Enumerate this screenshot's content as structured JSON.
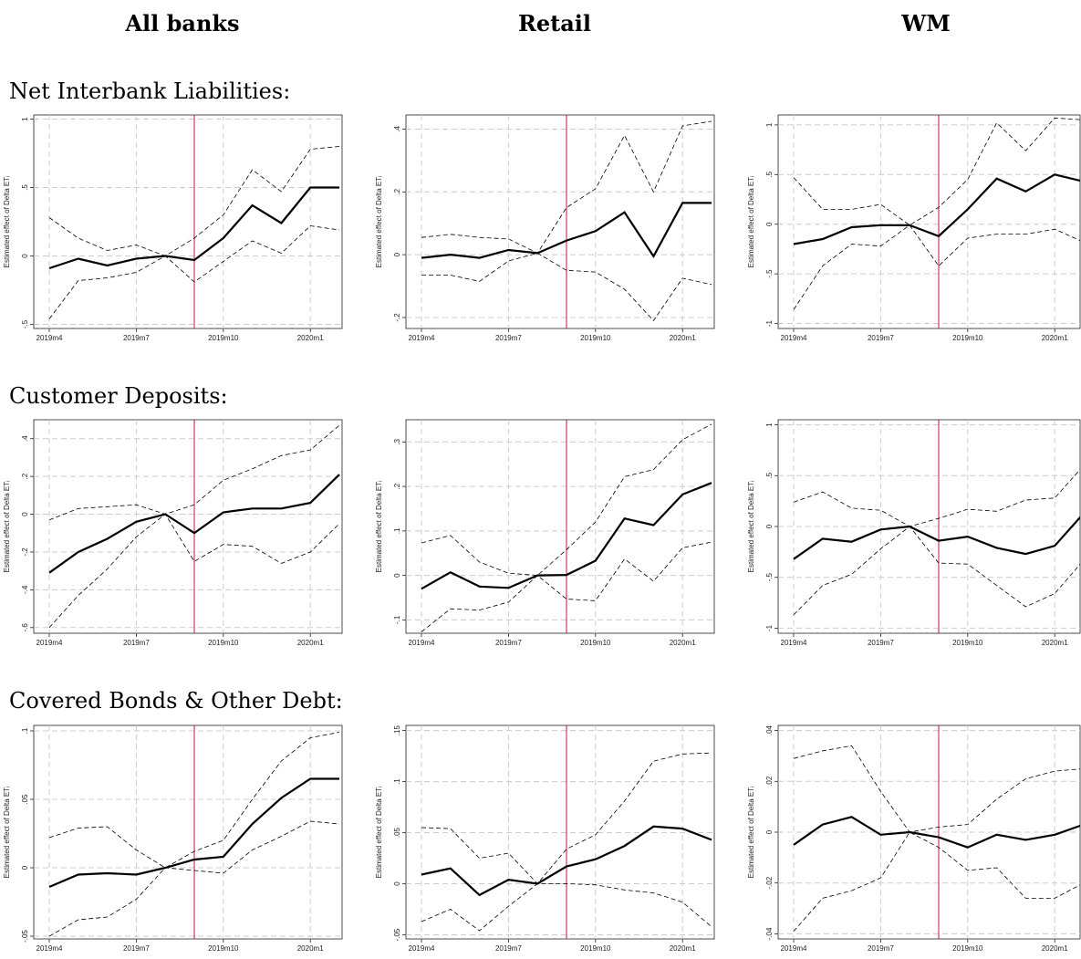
{
  "column_titles": [
    "All banks",
    "Retail",
    "WM"
  ],
  "row_titles": [
    "Net Interbank Liabilities:",
    "Customer Deposits:",
    "Covered Bonds & Other Debt:"
  ],
  "chart_data": [
    {
      "type": "line",
      "y_label": "Estimated effect of Delta ETᵢ",
      "categories": [
        "2019m4",
        null,
        null,
        "2019m7",
        null,
        null,
        "2019m10",
        null,
        null,
        "2020m1",
        null
      ],
      "series": [
        {
          "color": "#000000",
          "style": "solid",
          "values": [
            -0.09,
            -0.02,
            -0.07,
            -0.02,
            0,
            -0.03,
            0.13,
            0.37,
            0.24,
            0.5,
            0.5
          ]
        },
        {
          "color": "#000000",
          "style": "dashed",
          "values": [
            0.28,
            0.13,
            0.04,
            0.08,
            0,
            0.13,
            0.3,
            0.63,
            0.47,
            0.78,
            0.8
          ]
        },
        {
          "color": "#000000",
          "style": "dashed",
          "values": [
            -0.46,
            -0.18,
            -0.16,
            -0.12,
            0,
            -0.19,
            -0.04,
            0.11,
            0.02,
            0.22,
            0.19
          ]
        }
      ],
      "ylim": [
        -0.53,
        1.03
      ],
      "yticks": [
        {
          "value": -0.5,
          "label": "-.5"
        },
        0,
        {
          "value": 0.5,
          "label": ".5"
        },
        1
      ],
      "vline": 5,
      "vline_color": "#c8103a",
      "grid": true
    },
    {
      "type": "line",
      "y_label": "Estimated effect of Delta ETᵢ",
      "categories": [
        "2019m4",
        null,
        null,
        "2019m7",
        null,
        null,
        "2019m10",
        null,
        null,
        "2020m1",
        null
      ],
      "series": [
        {
          "color": "#000000",
          "style": "solid",
          "values": [
            -0.01,
            0,
            -0.01,
            0.015,
            0.005,
            0.045,
            0.075,
            0.135,
            -0.005,
            0.165,
            0.165
          ]
        },
        {
          "color": "#000000",
          "style": "dashed",
          "values": [
            0.055,
            0.065,
            0.055,
            0.05,
            0.005,
            0.15,
            0.21,
            0.38,
            0.2,
            0.41,
            0.425
          ]
        },
        {
          "color": "#000000",
          "style": "dashed",
          "values": [
            -0.065,
            -0.065,
            -0.085,
            -0.02,
            0.005,
            -0.05,
            -0.055,
            -0.11,
            -0.21,
            -0.075,
            -0.095
          ]
        }
      ],
      "ylim": [
        -0.235,
        0.445
      ],
      "yticks": [
        {
          "value": -0.2,
          "label": "-.2"
        },
        0,
        {
          "value": 0.2,
          "label": ".2"
        },
        {
          "value": 0.4,
          "label": ".4"
        }
      ],
      "vline": 5,
      "vline_color": "#c8103a",
      "grid": true
    },
    {
      "type": "line",
      "y_label": "Estimated effect of Delta ETᵢ",
      "categories": [
        "2019m4",
        null,
        null,
        "2019m7",
        null,
        null,
        "2019m10",
        null,
        null,
        "2020m1",
        null
      ],
      "series": [
        {
          "color": "#000000",
          "style": "solid",
          "values": [
            -0.2,
            -0.15,
            -0.03,
            -0.01,
            -0.01,
            -0.12,
            0.15,
            0.46,
            0.33,
            0.5,
            0.43
          ]
        },
        {
          "color": "#000000",
          "style": "dashed",
          "values": [
            0.47,
            0.15,
            0.15,
            0.2,
            -0.01,
            0.17,
            0.45,
            1.02,
            0.74,
            1.07,
            1.05
          ]
        },
        {
          "color": "#000000",
          "style": "dashed",
          "values": [
            -0.86,
            -0.42,
            -0.2,
            -0.22,
            -0.01,
            -0.42,
            -0.14,
            -0.1,
            -0.1,
            -0.05,
            -0.18
          ]
        }
      ],
      "ylim": [
        -1.05,
        1.1
      ],
      "yticks": [
        -1,
        {
          "value": -0.5,
          "label": "-.5"
        },
        0,
        {
          "value": 0.5,
          "label": ".5"
        },
        1
      ],
      "vline": 5,
      "vline_color": "#c8103a",
      "grid": true
    },
    {
      "type": "line",
      "y_label": "Estimated effect of Delta ETᵢ",
      "categories": [
        "2019m4",
        null,
        null,
        "2019m7",
        null,
        null,
        "2019m10",
        null,
        null,
        "2020m1",
        null
      ],
      "series": [
        {
          "color": "#000000",
          "style": "solid",
          "values": [
            -0.31,
            -0.2,
            -0.13,
            -0.04,
            0,
            -0.1,
            0.01,
            0.03,
            0.03,
            0.06,
            0.21
          ]
        },
        {
          "color": "#000000",
          "style": "dashed",
          "values": [
            -0.03,
            0.03,
            0.04,
            0.05,
            0,
            0.05,
            0.18,
            0.24,
            0.31,
            0.34,
            0.47
          ]
        },
        {
          "color": "#000000",
          "style": "dashed",
          "values": [
            -0.6,
            -0.43,
            -0.29,
            -0.12,
            0,
            -0.25,
            -0.16,
            -0.17,
            -0.26,
            -0.2,
            -0.05
          ]
        }
      ],
      "ylim": [
        -0.63,
        0.5
      ],
      "yticks": [
        {
          "value": -0.6,
          "label": "-.6"
        },
        {
          "value": -0.4,
          "label": "-.4"
        },
        {
          "value": -0.2,
          "label": "-.2"
        },
        0,
        {
          "value": 0.2,
          "label": ".2"
        },
        {
          "value": 0.4,
          "label": ".4"
        }
      ],
      "vline": 5,
      "vline_color": "#c8103a",
      "grid": true
    },
    {
      "type": "line",
      "y_label": "Estimated effect of Delta ETᵢ",
      "categories": [
        "2019m4",
        null,
        null,
        "2019m7",
        null,
        null,
        "2019m10",
        null,
        null,
        "2020m1",
        null
      ],
      "series": [
        {
          "color": "#000000",
          "style": "solid",
          "values": [
            -0.03,
            0.007,
            -0.025,
            -0.028,
            0,
            0.001,
            0.033,
            0.128,
            0.113,
            0.182,
            0.208
          ]
        },
        {
          "color": "#000000",
          "style": "dashed",
          "values": [
            0.073,
            0.09,
            0.03,
            0.005,
            0,
            0.058,
            0.12,
            0.222,
            0.238,
            0.305,
            0.34
          ]
        },
        {
          "color": "#000000",
          "style": "dashed",
          "values": [
            -0.127,
            -0.075,
            -0.078,
            -0.06,
            0,
            -0.053,
            -0.057,
            0.037,
            -0.013,
            0.062,
            0.075
          ]
        }
      ],
      "ylim": [
        -0.13,
        0.35
      ],
      "yticks": [
        {
          "value": -0.1,
          "label": "-.1"
        },
        0,
        {
          "value": 0.1,
          "label": ".1"
        },
        {
          "value": 0.2,
          "label": ".2"
        },
        {
          "value": 0.3,
          "label": ".3"
        }
      ],
      "vline": 5,
      "vline_color": "#c8103a",
      "grid": true
    },
    {
      "type": "line",
      "y_label": "Estimated effect of Delta ETᵢ",
      "categories": [
        "2019m4",
        null,
        null,
        "2019m7",
        null,
        null,
        "2019m10",
        null,
        null,
        "2020m1",
        null
      ],
      "series": [
        {
          "color": "#000000",
          "style": "solid",
          "values": [
            -0.32,
            -0.12,
            -0.15,
            -0.03,
            0,
            -0.14,
            -0.1,
            -0.21,
            -0.27,
            -0.19,
            0.13
          ]
        },
        {
          "color": "#000000",
          "style": "dashed",
          "values": [
            0.24,
            0.34,
            0.18,
            0.16,
            0,
            0.08,
            0.17,
            0.15,
            0.26,
            0.28,
            0.6
          ]
        },
        {
          "color": "#000000",
          "style": "dashed",
          "values": [
            -0.87,
            -0.58,
            -0.47,
            -0.22,
            0,
            -0.36,
            -0.37,
            -0.58,
            -0.79,
            -0.66,
            -0.33
          ]
        }
      ],
      "ylim": [
        -1.05,
        1.05
      ],
      "yticks": [
        -1,
        {
          "value": -0.5,
          "label": "-.5"
        },
        0,
        {
          "value": 0.5,
          "label": ".5"
        },
        1
      ],
      "vline": 5,
      "vline_color": "#c8103a",
      "grid": true
    },
    {
      "type": "line",
      "y_label": "Estimated effect of Delta ETᵢ",
      "categories": [
        "2019m4",
        null,
        null,
        "2019m7",
        null,
        null,
        "2019m10",
        null,
        null,
        "2020m1",
        null
      ],
      "series": [
        {
          "color": "#000000",
          "style": "solid",
          "values": [
            -0.014,
            -0.005,
            -0.004,
            -0.005,
            0,
            0.006,
            0.008,
            0.032,
            0.051,
            0.065,
            0.065
          ]
        },
        {
          "color": "#000000",
          "style": "dashed",
          "values": [
            0.022,
            0.029,
            0.03,
            0.013,
            0,
            0.012,
            0.02,
            0.05,
            0.078,
            0.095,
            0.099
          ]
        },
        {
          "color": "#000000",
          "style": "dashed",
          "values": [
            -0.05,
            -0.038,
            -0.036,
            -0.023,
            0,
            -0.002,
            -0.004,
            0.013,
            0.023,
            0.034,
            0.032
          ]
        }
      ],
      "ylim": [
        -0.052,
        0.104
      ],
      "yticks": [
        {
          "value": -0.05,
          "label": "-.05"
        },
        0,
        {
          "value": 0.05,
          "label": ".05"
        },
        {
          "value": 0.1,
          "label": ".1"
        }
      ],
      "vline": 5,
      "vline_color": "#c8103a",
      "grid": true
    },
    {
      "type": "line",
      "y_label": "Estimated effect of Delta ETᵢ",
      "categories": [
        "2019m4",
        null,
        null,
        "2019m7",
        null,
        null,
        "2019m10",
        null,
        null,
        "2020m1",
        null
      ],
      "series": [
        {
          "color": "#000000",
          "style": "solid",
          "values": [
            0.009,
            0.015,
            -0.011,
            0.004,
            0,
            0.017,
            0.024,
            0.037,
            0.056,
            0.054,
            0.043
          ]
        },
        {
          "color": "#000000",
          "style": "dashed",
          "values": [
            0.055,
            0.054,
            0.025,
            0.03,
            0,
            0.034,
            0.048,
            0.081,
            0.12,
            0.127,
            0.128
          ]
        },
        {
          "color": "#000000",
          "style": "dashed",
          "values": [
            -0.037,
            -0.025,
            -0.046,
            -0.022,
            0,
            0,
            -0.001,
            -0.006,
            -0.009,
            -0.018,
            -0.042
          ]
        }
      ],
      "ylim": [
        -0.054,
        0.155
      ],
      "yticks": [
        {
          "value": -0.05,
          "label": "-.05"
        },
        0,
        {
          "value": 0.05,
          "label": ".05"
        },
        {
          "value": 0.1,
          "label": ".1"
        },
        {
          "value": 0.15,
          "label": ".15"
        }
      ],
      "vline": 5,
      "vline_color": "#c8103a",
      "grid": true
    },
    {
      "type": "line",
      "y_label": "Estimated effect of Delta ETᵢ",
      "categories": [
        "2019m4",
        null,
        null,
        "2019m7",
        null,
        null,
        "2019m10",
        null,
        null,
        "2020m1",
        null
      ],
      "series": [
        {
          "color": "#000000",
          "style": "solid",
          "values": [
            -0.005,
            0.003,
            0.006,
            -0.001,
            0,
            -0.002,
            -0.006,
            -0.001,
            -0.003,
            -0.001,
            0.003
          ]
        },
        {
          "color": "#000000",
          "style": "dashed",
          "values": [
            0.029,
            0.032,
            0.034,
            0.016,
            0,
            0.002,
            0.003,
            0.013,
            0.021,
            0.024,
            0.025
          ]
        },
        {
          "color": "#000000",
          "style": "dashed",
          "values": [
            -0.039,
            -0.026,
            -0.023,
            -0.018,
            0,
            -0.006,
            -0.015,
            -0.014,
            -0.026,
            -0.026,
            -0.02
          ]
        }
      ],
      "ylim": [
        -0.042,
        0.042
      ],
      "yticks": [
        {
          "value": -0.04,
          "label": "-.04"
        },
        {
          "value": -0.02,
          "label": "-.02"
        },
        0,
        {
          "value": 0.02,
          "label": ".02"
        },
        {
          "value": 0.04,
          "label": ".04"
        }
      ],
      "vline": 5,
      "vline_color": "#c8103a",
      "grid": true
    }
  ]
}
